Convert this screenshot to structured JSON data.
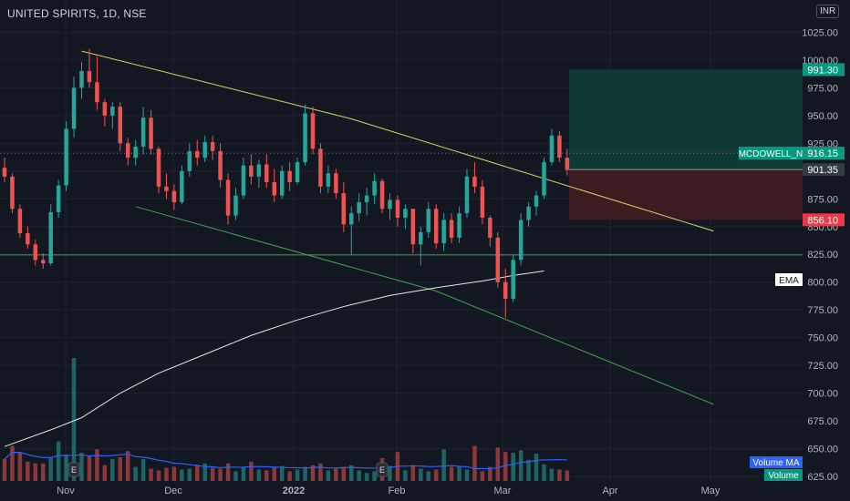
{
  "header": {
    "title": "UNITED SPIRITS, 1D, NSE",
    "currency": "INR"
  },
  "colors": {
    "bg": "#131722",
    "grid": "#1f2330",
    "axis_text": "#b2b5be",
    "up": "#26a69a",
    "down": "#ef5350",
    "upper_trend": "#d4d46a",
    "lower_trend": "#3fa34d",
    "ema": "#e8e8e8",
    "volume_ma": "#2962ff",
    "target_zone": "#0e3b37",
    "stop_zone": "#3f1c22"
  },
  "chart_data": {
    "type": "candlestick",
    "x_labels": [
      "Nov",
      "Dec",
      "2022",
      "Feb",
      "Mar",
      "Apr",
      "May"
    ],
    "y_ticks": [
      "1025.00",
      "1000.00",
      "975.00",
      "950.00",
      "925.00",
      "900.00",
      "875.00",
      "850.00",
      "825.00",
      "800.00",
      "775.00",
      "750.00",
      "725.00",
      "700.00",
      "675.00",
      "650.00",
      "625.00"
    ],
    "ylim": [
      621,
      1054
    ],
    "candles": [
      [
        903,
        912,
        890,
        895
      ],
      [
        895,
        898,
        862,
        866
      ],
      [
        866,
        870,
        840,
        844
      ],
      [
        844,
        850,
        830,
        834
      ],
      [
        834,
        838,
        815,
        820
      ],
      [
        820,
        826,
        812,
        817
      ],
      [
        817,
        870,
        815,
        863
      ],
      [
        863,
        892,
        858,
        887
      ],
      [
        887,
        945,
        882,
        938
      ],
      [
        938,
        985,
        930,
        975
      ],
      [
        975,
        998,
        965,
        990
      ],
      [
        990,
        1010,
        975,
        980
      ],
      [
        980,
        1003,
        955,
        962
      ],
      [
        962,
        965,
        940,
        950
      ],
      [
        950,
        962,
        938,
        958
      ],
      [
        958,
        962,
        918,
        925
      ],
      [
        925,
        930,
        905,
        912
      ],
      [
        912,
        928,
        905,
        922
      ],
      [
        922,
        958,
        915,
        948
      ],
      [
        948,
        955,
        915,
        920
      ],
      [
        920,
        922,
        880,
        886
      ],
      [
        886,
        898,
        875,
        882
      ],
      [
        882,
        888,
        865,
        872
      ],
      [
        872,
        905,
        870,
        900
      ],
      [
        900,
        925,
        895,
        918
      ],
      [
        918,
        928,
        905,
        912
      ],
      [
        912,
        932,
        908,
        926
      ],
      [
        926,
        932,
        910,
        918
      ],
      [
        918,
        925,
        885,
        892
      ],
      [
        892,
        898,
        852,
        860
      ],
      [
        860,
        885,
        856,
        878
      ],
      [
        878,
        912,
        875,
        905
      ],
      [
        905,
        915,
        888,
        895
      ],
      [
        895,
        910,
        885,
        906
      ],
      [
        906,
        915,
        885,
        890
      ],
      [
        890,
        902,
        872,
        878
      ],
      [
        878,
        905,
        875,
        900
      ],
      [
        900,
        908,
        882,
        890
      ],
      [
        890,
        912,
        888,
        908
      ],
      [
        908,
        960,
        905,
        952
      ],
      [
        952,
        958,
        915,
        920
      ],
      [
        920,
        925,
        880,
        886
      ],
      [
        886,
        905,
        880,
        898
      ],
      [
        898,
        902,
        875,
        880
      ],
      [
        880,
        890,
        845,
        852
      ],
      [
        852,
        868,
        825,
        862
      ],
      [
        862,
        880,
        855,
        872
      ],
      [
        872,
        885,
        860,
        878
      ],
      [
        878,
        898,
        870,
        891
      ],
      [
        891,
        893,
        862,
        866
      ],
      [
        866,
        880,
        856,
        874
      ],
      [
        874,
        878,
        850,
        858
      ],
      [
        858,
        870,
        848,
        866
      ],
      [
        866,
        866,
        826,
        834
      ],
      [
        834,
        850,
        815,
        845
      ],
      [
        845,
        872,
        840,
        866
      ],
      [
        866,
        870,
        830,
        835
      ],
      [
        835,
        862,
        828,
        856
      ],
      [
        856,
        862,
        835,
        840
      ],
      [
        840,
        868,
        835,
        862
      ],
      [
        862,
        902,
        858,
        895
      ],
      [
        895,
        908,
        880,
        886
      ],
      [
        886,
        892,
        852,
        858
      ],
      [
        858,
        860,
        832,
        840
      ],
      [
        840,
        845,
        795,
        800
      ],
      [
        800,
        812,
        768,
        785
      ],
      [
        785,
        825,
        782,
        820
      ],
      [
        820,
        862,
        815,
        856
      ],
      [
        856,
        872,
        850,
        868
      ],
      [
        868,
        882,
        860,
        878
      ],
      [
        878,
        912,
        875,
        908
      ],
      [
        908,
        938,
        905,
        932
      ],
      [
        932,
        936,
        908,
        912
      ],
      [
        912,
        920,
        896,
        901
      ]
    ],
    "volumes": [
      25,
      40,
      33,
      22,
      20,
      20,
      26,
      45,
      30,
      30,
      32,
      28,
      36,
      18,
      25,
      27,
      34,
      16,
      25,
      14,
      12,
      15,
      16,
      13,
      14,
      18,
      20,
      15,
      14,
      20,
      11,
      16,
      22,
      13,
      12,
      15,
      17,
      11,
      13,
      16,
      18,
      20,
      12,
      14,
      16,
      18,
      12,
      9,
      11,
      26,
      17,
      33,
      12,
      18,
      14,
      11,
      13,
      15,
      16,
      17,
      13,
      12,
      11,
      16,
      28,
      33,
      30,
      35,
      24,
      31,
      19,
      14,
      13,
      12
    ],
    "volume_spikes": {
      "9": 140,
      "57": 36,
      "61": 40,
      "64": 38,
      "66": 32
    },
    "ema": [
      [
        0,
        652
      ],
      [
        6,
        667
      ],
      [
        10,
        678
      ],
      [
        15,
        700
      ],
      [
        20,
        718
      ],
      [
        26,
        735
      ],
      [
        32,
        752
      ],
      [
        38,
        766
      ],
      [
        44,
        778
      ],
      [
        50,
        788
      ],
      [
        56,
        795
      ],
      [
        62,
        801
      ],
      [
        66,
        806
      ],
      [
        70,
        810
      ]
    ],
    "upper_trend": [
      [
        10,
        1008
      ],
      [
        45,
        947
      ],
      [
        92,
        846
      ]
    ],
    "lower_trend": [
      [
        17,
        868
      ],
      [
        56,
        792
      ],
      [
        92,
        690
      ]
    ],
    "horizontal_level": 824.5,
    "labels": {
      "target": "991.30",
      "instrument": "MCDOWELL_N",
      "instrument_price": "916.15",
      "entry": "901.35",
      "stop": "856.10",
      "ema": "EMA",
      "volume_ma": "Volume MA",
      "volume": "Volume"
    },
    "earnings_marker": "E"
  }
}
